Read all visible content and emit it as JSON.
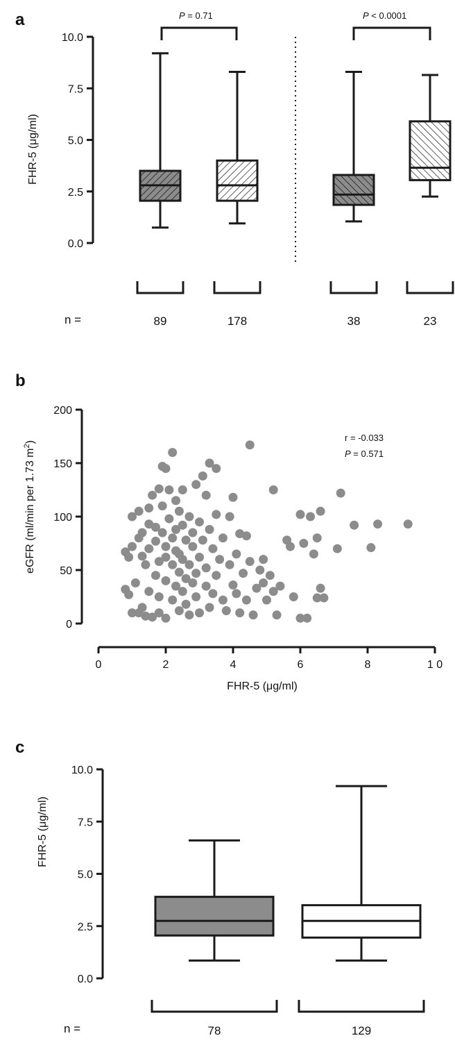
{
  "panels": {
    "a": {
      "letter": "a",
      "ylabel": "FHR-5 (μg/ml)",
      "n_prefix": "n =",
      "p_left_prefix": "P",
      "p_left_value": " = 0.71",
      "p_right_prefix": "P",
      "p_right_value": " < 0.0001"
    },
    "b": {
      "letter": "b",
      "ylabel": "eGFR (ml/min per 1.73 m",
      "ylabel_sup": "2",
      "ylabel_close": ")",
      "xlabel": "FHR-5 (μg/ml)",
      "r_text": "r = -0.033",
      "p_prefix": "P",
      "p_value": " = 0.571"
    },
    "c": {
      "letter": "c",
      "ylabel": "FHR-5 (μg/ml)",
      "n_prefix": "n ="
    }
  },
  "chart_data": [
    {
      "panel": "a",
      "type": "box",
      "ylim": [
        0,
        10
      ],
      "yticks": [
        "0.0",
        "2.5",
        "5.0",
        "7.5",
        "10.0"
      ],
      "colors": {
        "fill_dark": "#8c8c8c",
        "fill_light": "#ffffff",
        "stroke": "#1a1a1a"
      },
      "groups": [
        {
          "n": "89",
          "min": 0.75,
          "q1": 2.05,
          "median": 2.8,
          "q3": 3.5,
          "max": 9.2,
          "fill": "dark",
          "hatch": "diag-up"
        },
        {
          "n": "178",
          "min": 0.95,
          "q1": 2.05,
          "median": 2.8,
          "q3": 4.0,
          "max": 8.3,
          "fill": "light",
          "hatch": "diag-up"
        },
        {
          "n": "38",
          "min": 1.05,
          "q1": 1.85,
          "median": 2.35,
          "q3": 3.3,
          "max": 8.3,
          "fill": "dark",
          "hatch": "diag-down"
        },
        {
          "n": "23",
          "min": 2.25,
          "q1": 3.05,
          "median": 3.65,
          "q3": 5.9,
          "max": 8.15,
          "fill": "light",
          "hatch": "diag-down"
        }
      ],
      "comparisons": [
        {
          "between": [
            0,
            1
          ],
          "label": "P = 0.71"
        },
        {
          "between": [
            2,
            3
          ],
          "label": "P < 0.0001"
        }
      ],
      "separator": "dotted line between second and third group"
    },
    {
      "panel": "b",
      "type": "scatter",
      "xlim": [
        0,
        10
      ],
      "ylim": [
        0,
        200
      ],
      "xticks": [
        "0",
        "2",
        "4",
        "6",
        "8",
        "1 0"
      ],
      "yticks": [
        "0",
        "50",
        "100",
        "150",
        "200"
      ],
      "xlabel": "FHR-5 (μg/ml)",
      "ylabel": "eGFR (ml/min per 1.73 m2)",
      "annotation": [
        "r = -0.033",
        "P = 0.571"
      ],
      "color": "#8c8c8c",
      "points": [
        [
          0.8,
          32
        ],
        [
          0.8,
          67
        ],
        [
          0.9,
          62
        ],
        [
          0.9,
          27
        ],
        [
          1.0,
          10
        ],
        [
          1.0,
          100
        ],
        [
          1.0,
          72
        ],
        [
          1.1,
          38
        ],
        [
          1.2,
          105
        ],
        [
          1.2,
          80
        ],
        [
          1.3,
          15
        ],
        [
          1.3,
          63
        ],
        [
          1.3,
          85
        ],
        [
          1.2,
          10
        ],
        [
          1.4,
          7
        ],
        [
          1.5,
          108
        ],
        [
          1.5,
          70
        ],
        [
          1.4,
          55
        ],
        [
          1.5,
          30
        ],
        [
          1.5,
          93
        ],
        [
          1.6,
          6
        ],
        [
          1.6,
          120
        ],
        [
          1.7,
          45
        ],
        [
          1.7,
          90
        ],
        [
          1.7,
          77
        ],
        [
          1.8,
          126
        ],
        [
          1.8,
          10
        ],
        [
          1.8,
          58
        ],
        [
          1.8,
          25
        ],
        [
          1.9,
          147
        ],
        [
          1.9,
          110
        ],
        [
          1.9,
          85
        ],
        [
          2.0,
          72
        ],
        [
          2.0,
          40
        ],
        [
          2.0,
          62
        ],
        [
          2.0,
          5
        ],
        [
          2.0,
          145
        ],
        [
          2.1,
          125
        ],
        [
          2.1,
          98
        ],
        [
          2.2,
          80
        ],
        [
          2.2,
          55
        ],
        [
          2.2,
          22
        ],
        [
          2.2,
          160
        ],
        [
          2.3,
          115
        ],
        [
          2.3,
          88
        ],
        [
          2.3,
          35
        ],
        [
          2.3,
          68
        ],
        [
          2.4,
          105
        ],
        [
          2.4,
          65
        ],
        [
          2.4,
          48
        ],
        [
          2.4,
          12
        ],
        [
          2.5,
          125
        ],
        [
          2.5,
          92
        ],
        [
          2.5,
          60
        ],
        [
          2.5,
          30
        ],
        [
          2.6,
          78
        ],
        [
          2.6,
          42
        ],
        [
          2.6,
          18
        ],
        [
          2.7,
          100
        ],
        [
          2.7,
          55
        ],
        [
          2.7,
          8
        ],
        [
          2.8,
          72
        ],
        [
          2.8,
          38
        ],
        [
          2.8,
          85
        ],
        [
          2.9,
          130
        ],
        [
          2.9,
          47
        ],
        [
          2.9,
          25
        ],
        [
          3.0,
          95
        ],
        [
          3.0,
          62
        ],
        [
          3.0,
          10
        ],
        [
          3.1,
          138
        ],
        [
          3.1,
          78
        ],
        [
          3.2,
          120
        ],
        [
          3.2,
          52
        ],
        [
          3.2,
          35
        ],
        [
          3.3,
          150
        ],
        [
          3.3,
          88
        ],
        [
          3.3,
          15
        ],
        [
          3.4,
          70
        ],
        [
          3.4,
          28
        ],
        [
          3.5,
          145
        ],
        [
          3.5,
          102
        ],
        [
          3.5,
          45
        ],
        [
          3.6,
          60
        ],
        [
          3.7,
          22
        ],
        [
          3.7,
          80
        ],
        [
          3.8,
          12
        ],
        [
          3.9,
          100
        ],
        [
          3.9,
          55
        ],
        [
          4.0,
          36
        ],
        [
          4.0,
          118
        ],
        [
          4.1,
          28
        ],
        [
          4.1,
          65
        ],
        [
          4.2,
          84
        ],
        [
          4.2,
          10
        ],
        [
          4.3,
          47
        ],
        [
          4.4,
          82
        ],
        [
          4.4,
          22
        ],
        [
          4.5,
          167
        ],
        [
          4.5,
          58
        ],
        [
          4.6,
          8
        ],
        [
          4.7,
          33
        ],
        [
          4.8,
          50
        ],
        [
          4.9,
          38
        ],
        [
          4.9,
          60
        ],
        [
          5.0,
          22
        ],
        [
          5.1,
          45
        ],
        [
          5.2,
          125
        ],
        [
          5.2,
          30
        ],
        [
          5.3,
          8
        ],
        [
          5.4,
          35
        ],
        [
          5.6,
          78
        ],
        [
          5.7,
          72
        ],
        [
          5.8,
          25
        ],
        [
          6.0,
          102
        ],
        [
          6.0,
          5
        ],
        [
          6.1,
          75
        ],
        [
          6.2,
          5
        ],
        [
          6.3,
          100
        ],
        [
          6.4,
          65
        ],
        [
          6.5,
          80
        ],
        [
          6.5,
          24
        ],
        [
          6.6,
          105
        ],
        [
          6.6,
          33
        ],
        [
          6.7,
          24
        ],
        [
          7.1,
          70
        ],
        [
          7.2,
          122
        ],
        [
          7.6,
          92
        ],
        [
          8.1,
          71
        ],
        [
          8.3,
          93
        ],
        [
          9.2,
          93
        ]
      ]
    },
    {
      "panel": "c",
      "type": "box",
      "ylim": [
        0,
        10
      ],
      "yticks": [
        "0.0",
        "2.5",
        "5.0",
        "7.5",
        "10.0"
      ],
      "colors": {
        "fill_dark": "#8c8c8c",
        "fill_light": "#ffffff",
        "stroke": "#1a1a1a"
      },
      "groups": [
        {
          "n": "78",
          "min": 0.85,
          "q1": 2.05,
          "median": 2.75,
          "q3": 3.9,
          "max": 6.6,
          "fill": "dark"
        },
        {
          "n": "129",
          "min": 0.85,
          "q1": 1.95,
          "median": 2.75,
          "q3": 3.5,
          "max": 9.2,
          "fill": "light"
        }
      ]
    }
  ]
}
